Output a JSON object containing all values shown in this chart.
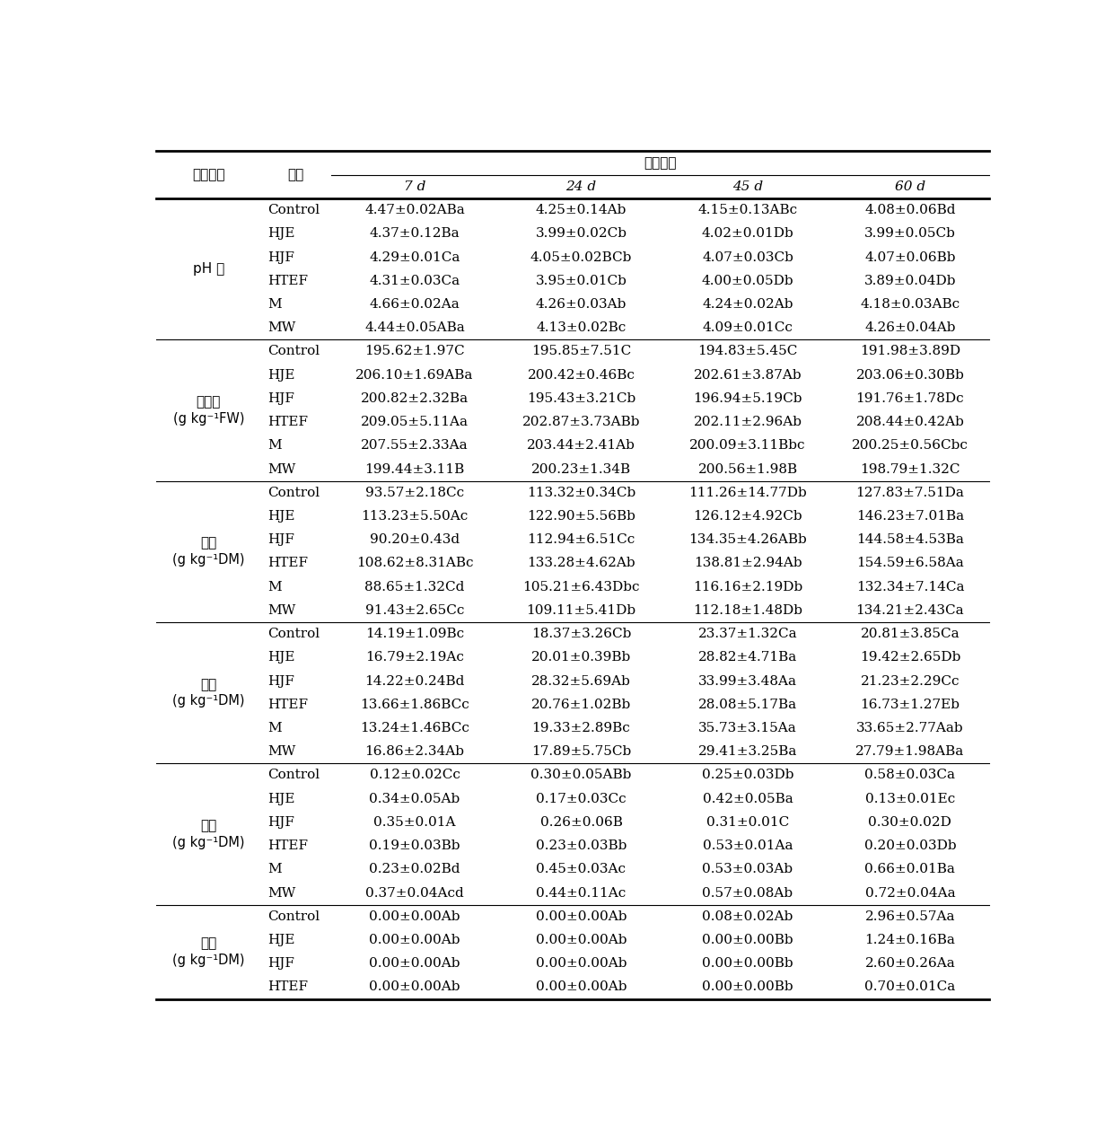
{
  "sections": [
    {
      "label_line1": "pH 值",
      "label_line2": "",
      "rows": [
        [
          "Control",
          "4.47±0.02ABa",
          "4.25±0.14Ab",
          "4.15±0.13ABc",
          "4.08±0.06Bd"
        ],
        [
          "HJE",
          "4.37±0.12Ba",
          "3.99±0.02Cb",
          "4.02±0.01Db",
          "3.99±0.05Cb"
        ],
        [
          "HJF",
          "4.29±0.01Ca",
          "4.05±0.02BCb",
          "4.07±0.03Cb",
          "4.07±0.06Bb"
        ],
        [
          "HTEF",
          "4.31±0.03Ca",
          "3.95±0.01Cb",
          "4.00±0.05Db",
          "3.89±0.04Db"
        ],
        [
          "M",
          "4.66±0.02Aa",
          "4.26±0.03Ab",
          "4.24±0.02Ab",
          "4.18±0.03ABc"
        ],
        [
          "MW",
          "4.44±0.05ABa",
          "4.13±0.02Bc",
          "4.09±0.01Cc",
          "4.26±0.04Ab"
        ]
      ]
    },
    {
      "label_line1": "干物质",
      "label_line2": "(g kg⁻¹FW)",
      "rows": [
        [
          "Control",
          "195.62±1.97C",
          "195.85±7.51C",
          "194.83±5.45C",
          "191.98±3.89D"
        ],
        [
          "HJE",
          "206.10±1.69ABa",
          "200.42±0.46Bc",
          "202.61±3.87Ab",
          "203.06±0.30Bb"
        ],
        [
          "HJF",
          "200.82±2.32Ba",
          "195.43±3.21Cb",
          "196.94±5.19Cb",
          "191.76±1.78Dc"
        ],
        [
          "HTEF",
          "209.05±5.11Aa",
          "202.87±3.73ABb",
          "202.11±2.96Ab",
          "208.44±0.42Ab"
        ],
        [
          "M",
          "207.55±2.33Aa",
          "203.44±2.41Ab",
          "200.09±3.11Bbc",
          "200.25±0.56Cbc"
        ],
        [
          "MW",
          "199.44±3.11B",
          "200.23±1.34B",
          "200.56±1.98B",
          "198.79±1.32C"
        ]
      ]
    },
    {
      "label_line1": "乳酸",
      "label_line2": "(g kg⁻¹DM)",
      "rows": [
        [
          "Control",
          "93.57±2.18Cc",
          "113.32±0.34Cb",
          "111.26±14.77Db",
          "127.83±7.51Da"
        ],
        [
          "HJE",
          "113.23±5.50Ac",
          "122.90±5.56Bb",
          "126.12±4.92Cb",
          "146.23±7.01Ba"
        ],
        [
          "HJF",
          "90.20±0.43d",
          "112.94±6.51Cc",
          "134.35±4.26ABb",
          "144.58±4.53Ba"
        ],
        [
          "HTEF",
          "108.62±8.31ABc",
          "133.28±4.62Ab",
          "138.81±2.94Ab",
          "154.59±6.58Aa"
        ],
        [
          "M",
          "88.65±1.32Cd",
          "105.21±6.43Dbc",
          "116.16±2.19Db",
          "132.34±7.14Ca"
        ],
        [
          "MW",
          "91.43±2.65Cc",
          "109.11±5.41Db",
          "112.18±1.48Db",
          "134.21±2.43Ca"
        ]
      ]
    },
    {
      "label_line1": "乙酸",
      "label_line2": "(g kg⁻¹DM)",
      "rows": [
        [
          "Control",
          "14.19±1.09Bc",
          "18.37±3.26Cb",
          "23.37±1.32Ca",
          "20.81±3.85Ca"
        ],
        [
          "HJE",
          "16.79±2.19Ac",
          "20.01±0.39Bb",
          "28.82±4.71Ba",
          "19.42±2.65Db"
        ],
        [
          "HJF",
          "14.22±0.24Bd",
          "28.32±5.69Ab",
          "33.99±3.48Aa",
          "21.23±2.29Cc"
        ],
        [
          "HTEF",
          "13.66±1.86BCc",
          "20.76±1.02Bb",
          "28.08±5.17Ba",
          "16.73±1.27Eb"
        ],
        [
          "M",
          "13.24±1.46BCc",
          "19.33±2.89Bc",
          "35.73±3.15Aa",
          "33.65±2.77Aab"
        ],
        [
          "MW",
          "16.86±2.34Ab",
          "17.89±5.75Cb",
          "29.41±3.25Ba",
          "27.79±1.98ABa"
        ]
      ]
    },
    {
      "label_line1": "丙酸",
      "label_line2": "(g kg⁻¹DM)",
      "rows": [
        [
          "Control",
          "0.12±0.02Cc",
          "0.30±0.05ABb",
          "0.25±0.03Db",
          "0.58±0.03Ca"
        ],
        [
          "HJE",
          "0.34±0.05Ab",
          "0.17±0.03Cc",
          "0.42±0.05Ba",
          "0.13±0.01Ec"
        ],
        [
          "HJF",
          "0.35±0.01A",
          "0.26±0.06B",
          "0.31±0.01C",
          "0.30±0.02D"
        ],
        [
          "HTEF",
          "0.19±0.03Bb",
          "0.23±0.03Bb",
          "0.53±0.01Aa",
          "0.20±0.03Db"
        ],
        [
          "M",
          "0.23±0.02Bd",
          "0.45±0.03Ac",
          "0.53±0.03Ab",
          "0.66±0.01Ba"
        ],
        [
          "MW",
          "0.37±0.04Acd",
          "0.44±0.11Ac",
          "0.57±0.08Ab",
          "0.72±0.04Aa"
        ]
      ]
    },
    {
      "label_line1": "丁酸",
      "label_line2": "(g kg⁻¹DM)",
      "rows": [
        [
          "Control",
          "0.00±0.00Ab",
          "0.00±0.00Ab",
          "0.08±0.02Ab",
          "2.96±0.57Aa"
        ],
        [
          "HJE",
          "0.00±0.00Ab",
          "0.00±0.00Ab",
          "0.00±0.00Bb",
          "1.24±0.16Ba"
        ],
        [
          "HJF",
          "0.00±0.00Ab",
          "0.00±0.00Ab",
          "0.00±0.00Bb",
          "2.60±0.26Aa"
        ],
        [
          "HTEF",
          "0.00±0.00Ab",
          "0.00±0.00Ab",
          "0.00±0.00Bb",
          "0.70±0.01Ca"
        ]
      ]
    }
  ],
  "header_col0": "测定项目",
  "header_col1": "处理",
  "header_span": "青贮天数",
  "day_labels": [
    "7 d",
    "24 d",
    "45 d",
    "60 d"
  ],
  "font_size": 11.0,
  "background_color": "#ffffff",
  "line_color": "#000000",
  "text_color": "#000000"
}
